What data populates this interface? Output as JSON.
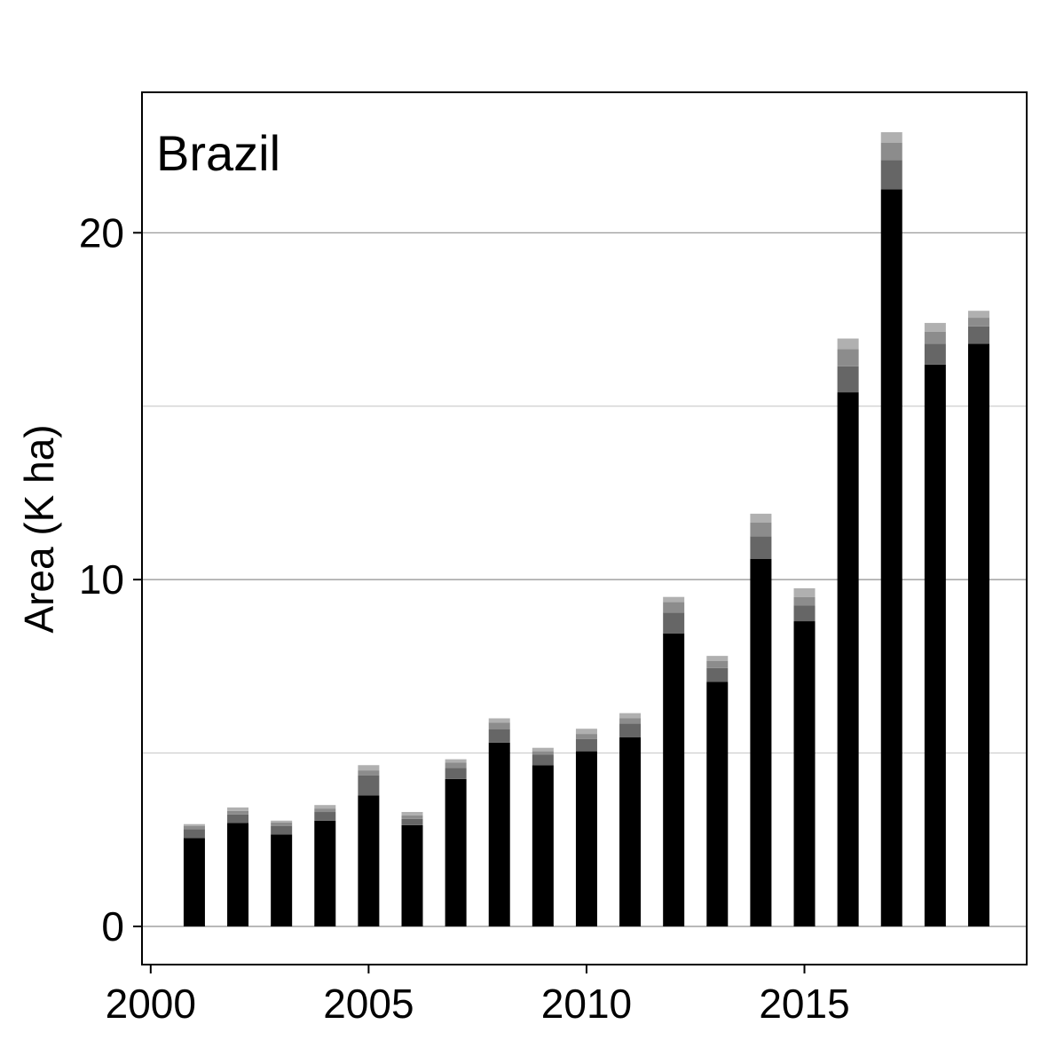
{
  "chart_data": {
    "type": "bar",
    "stacked": true,
    "panel_label": "Brazil",
    "title": "",
    "xlabel": "",
    "ylabel": "Area (K ha)",
    "x": [
      2001,
      2002,
      2003,
      2004,
      2005,
      2006,
      2007,
      2008,
      2009,
      2010,
      2011,
      2012,
      2013,
      2014,
      2015,
      2016,
      2017,
      2018,
      2019
    ],
    "xlim": [
      1999.8,
      2020.1
    ],
    "ylim": [
      -1.1,
      24.05
    ],
    "x_ticks": [
      2000,
      2005,
      2010,
      2015
    ],
    "y_ticks": [
      0,
      10,
      20
    ],
    "y_minor_gridlines": [
      5,
      15
    ],
    "grid": "horizontal",
    "series": [
      {
        "color": "#000000",
        "values": [
          2.55,
          2.98,
          2.65,
          3.05,
          3.78,
          2.92,
          4.25,
          5.3,
          4.65,
          5.05,
          5.45,
          8.45,
          7.05,
          10.6,
          8.8,
          15.4,
          21.25,
          16.2,
          16.8
        ]
      },
      {
        "color": "#666666",
        "values": [
          0.25,
          0.25,
          0.25,
          0.25,
          0.57,
          0.18,
          0.32,
          0.38,
          0.3,
          0.35,
          0.4,
          0.6,
          0.4,
          0.65,
          0.45,
          0.75,
          0.85,
          0.6,
          0.5
        ]
      },
      {
        "color": "#8c8c8c",
        "values": [
          0.1,
          0.1,
          0.1,
          0.1,
          0.15,
          0.1,
          0.15,
          0.2,
          0.1,
          0.15,
          0.15,
          0.3,
          0.2,
          0.4,
          0.25,
          0.5,
          0.5,
          0.35,
          0.25
        ]
      },
      {
        "color": "#b0b0b0",
        "values": [
          0.05,
          0.1,
          0.05,
          0.1,
          0.15,
          0.1,
          0.1,
          0.12,
          0.1,
          0.15,
          0.15,
          0.15,
          0.15,
          0.25,
          0.25,
          0.3,
          0.3,
          0.25,
          0.2
        ]
      }
    ]
  }
}
